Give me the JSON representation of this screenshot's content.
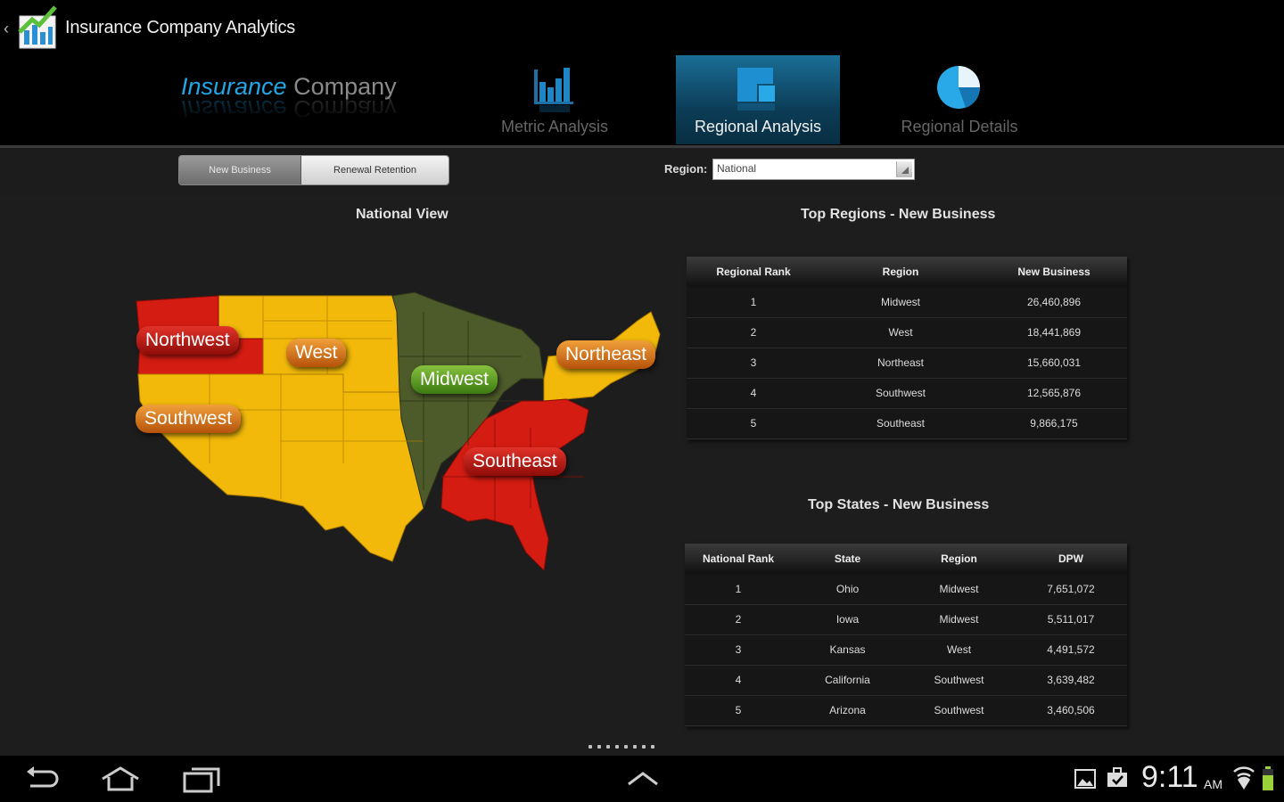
{
  "app": {
    "title": "Insurance Company Analytics"
  },
  "logo": {
    "word1": "Insurance",
    "word2": "Company"
  },
  "nav_tabs": [
    {
      "label": "Metric Analysis",
      "icon": "bar-chart-icon",
      "active": false
    },
    {
      "label": "Regional Analysis",
      "icon": "regional-map-icon",
      "active": true
    },
    {
      "label": "Regional Details",
      "icon": "pie-chart-icon",
      "active": false
    }
  ],
  "toolbar": {
    "segments": [
      "New Business",
      "Renewal Retention"
    ],
    "selected_segment": "New Business",
    "region_label": "Region:",
    "region_value": "National"
  },
  "map": {
    "title": "National View",
    "labels": {
      "northwest": "Northwest",
      "west": "West",
      "midwest": "Midwest",
      "northeast": "Northeast",
      "southwest": "Southwest",
      "southeast": "Southeast"
    },
    "colors": {
      "red": "#d51c12",
      "yellow": "#f2b90b",
      "green": "#4d5a2a"
    }
  },
  "top_regions": {
    "title": "Top Regions - New Business",
    "columns": [
      "Regional Rank",
      "Region",
      "New Business"
    ],
    "rows": [
      [
        "1",
        "Midwest",
        "26,460,896"
      ],
      [
        "2",
        "West",
        "18,441,869"
      ],
      [
        "3",
        "Northeast",
        "15,660,031"
      ],
      [
        "4",
        "Southwest",
        "12,565,876"
      ],
      [
        "5",
        "Southeast",
        "9,866,175"
      ]
    ]
  },
  "top_states": {
    "title": "Top States - New Business",
    "columns": [
      "National Rank",
      "State",
      "Region",
      "DPW"
    ],
    "rows": [
      [
        "1",
        "Ohio",
        "Midwest",
        "7,651,072"
      ],
      [
        "2",
        "Iowa",
        "Midwest",
        "5,511,017"
      ],
      [
        "3",
        "Kansas",
        "West",
        "4,491,572"
      ],
      [
        "4",
        "California",
        "Southwest",
        "3,639,482"
      ],
      [
        "5",
        "Arizona",
        "Southwest",
        "3,460,506"
      ]
    ]
  },
  "status_bar": {
    "time": "9:11",
    "ampm": "AM"
  }
}
